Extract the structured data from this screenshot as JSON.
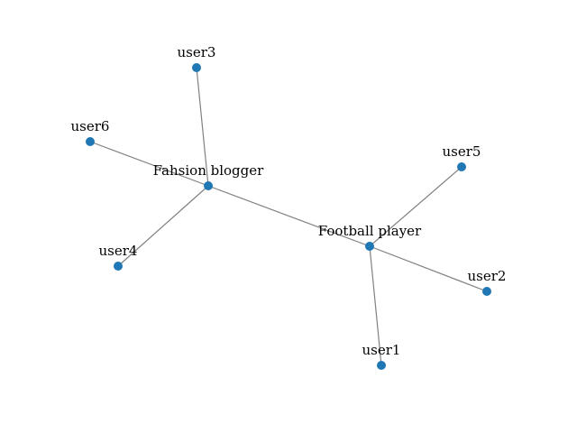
{
  "graph": {
    "node_color": "#1f77b4",
    "edge_color": "#808080",
    "nodes": [
      {
        "id": "user1",
        "label": "user1"
      },
      {
        "id": "user2",
        "label": "user2"
      },
      {
        "id": "user3",
        "label": "user3"
      },
      {
        "id": "user4",
        "label": "user4"
      },
      {
        "id": "user5",
        "label": "user5"
      },
      {
        "id": "user6",
        "label": "user6"
      },
      {
        "id": "football",
        "label": "Football player"
      },
      {
        "id": "fashion",
        "label": "Fahsion blogger"
      }
    ],
    "edges": [
      {
        "source": "user3",
        "target": "fashion"
      },
      {
        "source": "user6",
        "target": "fashion"
      },
      {
        "source": "user4",
        "target": "fashion"
      },
      {
        "source": "fashion",
        "target": "football"
      },
      {
        "source": "user5",
        "target": "football"
      },
      {
        "source": "user2",
        "target": "football"
      },
      {
        "source": "user1",
        "target": "football"
      }
    ]
  }
}
